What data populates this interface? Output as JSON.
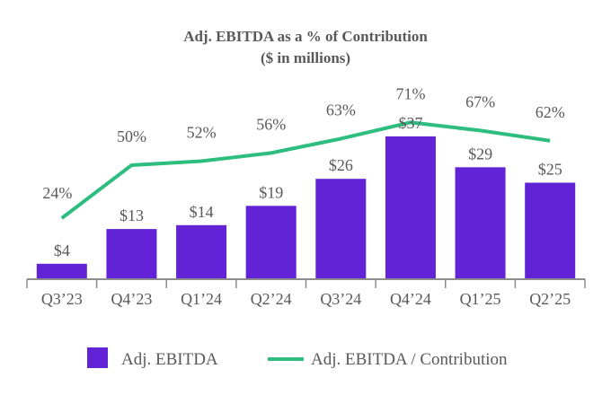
{
  "chart_data": {
    "type": "bar",
    "title": "Adj. EBITDA as a % of Contribution",
    "subtitle": "($ in millions)",
    "categories": [
      "Q3’23",
      "Q4’23",
      "Q1’24",
      "Q2’24",
      "Q3’24",
      "Q4’24",
      "Q1’25",
      "Q2’25"
    ],
    "series": [
      {
        "name": "Adj. EBITDA",
        "type": "bar",
        "values": [
          4,
          13,
          14,
          19,
          26,
          37,
          29,
          25
        ],
        "labels": [
          "$4",
          "$13",
          "$14",
          "$19",
          "$26",
          "$37",
          "$29",
          "$25"
        ],
        "color": "#6222d6"
      },
      {
        "name": "Adj. EBITDA / Contribution",
        "type": "line",
        "values": [
          24,
          50,
          52,
          56,
          63,
          71,
          67,
          62
        ],
        "labels": [
          "24%",
          "50%",
          "52%",
          "56%",
          "63%",
          "71%",
          "67%",
          "62%"
        ],
        "color": "#2dbd7f"
      }
    ],
    "xlabel": "",
    "ylabel": "",
    "grid": false,
    "legend": "bottom",
    "axis_color": "#8c8c8c",
    "text_color": "#595959"
  }
}
